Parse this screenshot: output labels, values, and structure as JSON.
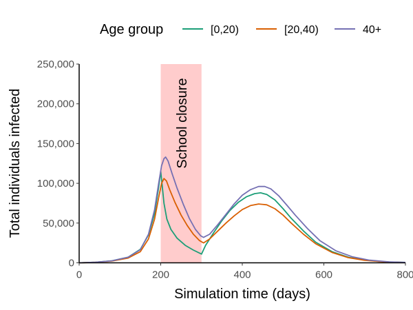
{
  "chart_data": {
    "type": "line",
    "xlabel": "Simulation time (days)",
    "ylabel": "Total individuals infected",
    "xlim": [
      0,
      800
    ],
    "ylim": [
      0,
      250000
    ],
    "x_ticks": [
      "0",
      "200",
      "400",
      "600",
      "800"
    ],
    "y_ticks": [
      "0",
      "50,000",
      "100,000",
      "150,000",
      "200,000",
      "250,000"
    ],
    "grid": false,
    "legend": {
      "title": "Age group",
      "position": "top"
    },
    "shaded_region": {
      "x_range": [
        200,
        300
      ],
      "label": "School closure",
      "color": "#ffcccc"
    },
    "series": [
      {
        "name": "[0,20)",
        "color": "#1b9e77",
        "points": [
          [
            0,
            0
          ],
          [
            40,
            800
          ],
          [
            80,
            2500
          ],
          [
            120,
            7000
          ],
          [
            150,
            17000
          ],
          [
            170,
            35000
          ],
          [
            185,
            62000
          ],
          [
            195,
            95000
          ],
          [
            200,
            115000
          ],
          [
            203,
            100000
          ],
          [
            208,
            75000
          ],
          [
            215,
            55000
          ],
          [
            225,
            42000
          ],
          [
            240,
            31000
          ],
          [
            260,
            22000
          ],
          [
            280,
            16000
          ],
          [
            300,
            11000
          ],
          [
            310,
            22000
          ],
          [
            330,
            38000
          ],
          [
            350,
            53000
          ],
          [
            370,
            66000
          ],
          [
            390,
            76000
          ],
          [
            410,
            83000
          ],
          [
            430,
            87000
          ],
          [
            445,
            88000
          ],
          [
            460,
            86000
          ],
          [
            480,
            79000
          ],
          [
            500,
            68000
          ],
          [
            520,
            56000
          ],
          [
            550,
            40000
          ],
          [
            580,
            26000
          ],
          [
            620,
            14000
          ],
          [
            660,
            7000
          ],
          [
            700,
            3500
          ],
          [
            750,
            1200
          ],
          [
            800,
            500
          ]
        ]
      },
      {
        "name": "[20,40)",
        "color": "#d95f02",
        "points": [
          [
            0,
            0
          ],
          [
            40,
            700
          ],
          [
            80,
            2200
          ],
          [
            120,
            6000
          ],
          [
            150,
            14000
          ],
          [
            170,
            30000
          ],
          [
            185,
            55000
          ],
          [
            195,
            82000
          ],
          [
            202,
            100000
          ],
          [
            208,
            106000
          ],
          [
            214,
            103000
          ],
          [
            222,
            92000
          ],
          [
            235,
            76000
          ],
          [
            250,
            60000
          ],
          [
            265,
            47000
          ],
          [
            280,
            36000
          ],
          [
            295,
            28000
          ],
          [
            305,
            25000
          ],
          [
            320,
            30000
          ],
          [
            340,
            40000
          ],
          [
            360,
            50000
          ],
          [
            380,
            59000
          ],
          [
            400,
            67000
          ],
          [
            420,
            72000
          ],
          [
            440,
            74000
          ],
          [
            460,
            73000
          ],
          [
            480,
            68000
          ],
          [
            500,
            60000
          ],
          [
            520,
            50000
          ],
          [
            550,
            36000
          ],
          [
            580,
            24000
          ],
          [
            620,
            13000
          ],
          [
            660,
            6500
          ],
          [
            700,
            3200
          ],
          [
            750,
            1100
          ],
          [
            800,
            400
          ]
        ]
      },
      {
        "name": "40+",
        "color": "#7570b3",
        "points": [
          [
            0,
            0
          ],
          [
            40,
            800
          ],
          [
            80,
            2500
          ],
          [
            120,
            7000
          ],
          [
            150,
            16500
          ],
          [
            170,
            36000
          ],
          [
            185,
            67000
          ],
          [
            195,
            100000
          ],
          [
            202,
            122000
          ],
          [
            208,
            131000
          ],
          [
            212,
            133000
          ],
          [
            218,
            128000
          ],
          [
            228,
            112000
          ],
          [
            240,
            94000
          ],
          [
            255,
            74000
          ],
          [
            270,
            56000
          ],
          [
            285,
            42000
          ],
          [
            298,
            34000
          ],
          [
            305,
            32000
          ],
          [
            320,
            36000
          ],
          [
            340,
            48000
          ],
          [
            360,
            61000
          ],
          [
            380,
            74000
          ],
          [
            400,
            85000
          ],
          [
            420,
            92000
          ],
          [
            440,
            96000
          ],
          [
            455,
            96000
          ],
          [
            470,
            93000
          ],
          [
            490,
            84000
          ],
          [
            510,
            72000
          ],
          [
            530,
            60000
          ],
          [
            560,
            43000
          ],
          [
            590,
            28000
          ],
          [
            630,
            15000
          ],
          [
            670,
            7500
          ],
          [
            710,
            3500
          ],
          [
            760,
            1200
          ],
          [
            800,
            500
          ]
        ]
      }
    ]
  }
}
